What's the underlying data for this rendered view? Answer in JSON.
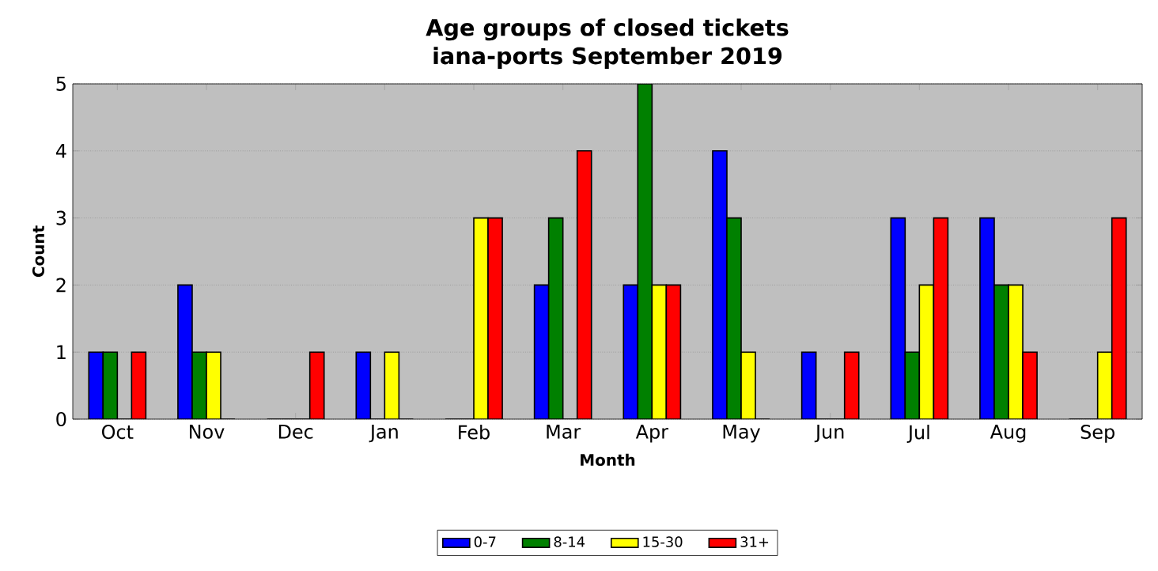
{
  "chart_data": {
    "type": "bar",
    "title": "Age groups of closed tickets",
    "subtitle": "iana-ports September 2019",
    "xlabel": "Month",
    "ylabel": "Count",
    "categories": [
      "Oct",
      "Nov",
      "Dec",
      "Jan",
      "Feb",
      "Mar",
      "Apr",
      "May",
      "Jun",
      "Jul",
      "Aug",
      "Sep"
    ],
    "series": [
      {
        "name": "0-7",
        "color": "#0000ff",
        "values": [
          1,
          2,
          0,
          1,
          0,
          2,
          2,
          4,
          1,
          3,
          3,
          0
        ]
      },
      {
        "name": "8-14",
        "color": "#008000",
        "values": [
          1,
          1,
          0,
          0,
          0,
          3,
          5,
          3,
          0,
          1,
          2,
          0
        ]
      },
      {
        "name": "15-30",
        "color": "#ffff00",
        "values": [
          0,
          1,
          0,
          1,
          3,
          0,
          2,
          1,
          0,
          2,
          2,
          1
        ]
      },
      {
        "name": "31+",
        "color": "#ff0000",
        "values": [
          1,
          0,
          1,
          0,
          3,
          4,
          2,
          0,
          1,
          3,
          1,
          3
        ]
      }
    ],
    "ylim": [
      0,
      5
    ],
    "yticks": [
      0,
      1,
      2,
      3,
      4,
      5
    ],
    "grid": "y",
    "legend": "bottom"
  }
}
